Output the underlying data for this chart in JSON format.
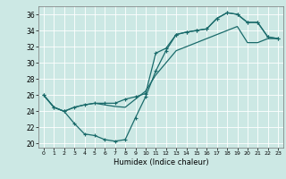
{
  "xlabel": "Humidex (Indice chaleur)",
  "bg_color": "#cce8e4",
  "grid_color": "#ffffff",
  "line_color": "#1a6b6b",
  "xlim": [
    -0.5,
    23.5
  ],
  "ylim": [
    19.5,
    37.0
  ],
  "yticks": [
    20,
    22,
    24,
    26,
    28,
    30,
    32,
    34,
    36
  ],
  "xticks": [
    0,
    1,
    2,
    3,
    4,
    5,
    6,
    7,
    8,
    9,
    10,
    11,
    12,
    13,
    14,
    15,
    16,
    17,
    18,
    19,
    20,
    21,
    22,
    23
  ],
  "line1_x": [
    0,
    1,
    2,
    3,
    4,
    5,
    6,
    7,
    8,
    9,
    10,
    11,
    12,
    13,
    14,
    15,
    16,
    17,
    18,
    19,
    20,
    21,
    22,
    23
  ],
  "line1_y": [
    26.0,
    24.5,
    24.0,
    24.5,
    24.8,
    25.0,
    25.0,
    25.0,
    25.5,
    25.8,
    26.2,
    31.2,
    31.8,
    33.5,
    33.8,
    34.0,
    34.2,
    35.5,
    36.2,
    36.0,
    35.0,
    35.0,
    33.2,
    33.0
  ],
  "line2_x": [
    0,
    1,
    2,
    3,
    4,
    5,
    6,
    7,
    8,
    9,
    10,
    11,
    12,
    13,
    14,
    15,
    16,
    17,
    18,
    19,
    20,
    21,
    22,
    23
  ],
  "line2_y": [
    26.0,
    24.5,
    24.0,
    22.5,
    21.2,
    21.0,
    20.5,
    20.3,
    20.5,
    23.2,
    25.8,
    29.0,
    31.5,
    33.5,
    33.8,
    34.0,
    34.2,
    35.5,
    36.2,
    36.0,
    35.0,
    35.0,
    33.2,
    33.0
  ],
  "line3_x": [
    0,
    1,
    2,
    3,
    4,
    5,
    6,
    7,
    8,
    9,
    10,
    11,
    12,
    13,
    14,
    15,
    16,
    17,
    18,
    19,
    20,
    21,
    22,
    23
  ],
  "line3_y": [
    26.0,
    24.5,
    24.0,
    24.5,
    24.8,
    25.0,
    24.8,
    24.6,
    24.5,
    25.5,
    26.5,
    28.5,
    30.0,
    31.5,
    32.0,
    32.5,
    33.0,
    33.5,
    34.0,
    34.5,
    32.5,
    32.5,
    33.0,
    33.0
  ]
}
